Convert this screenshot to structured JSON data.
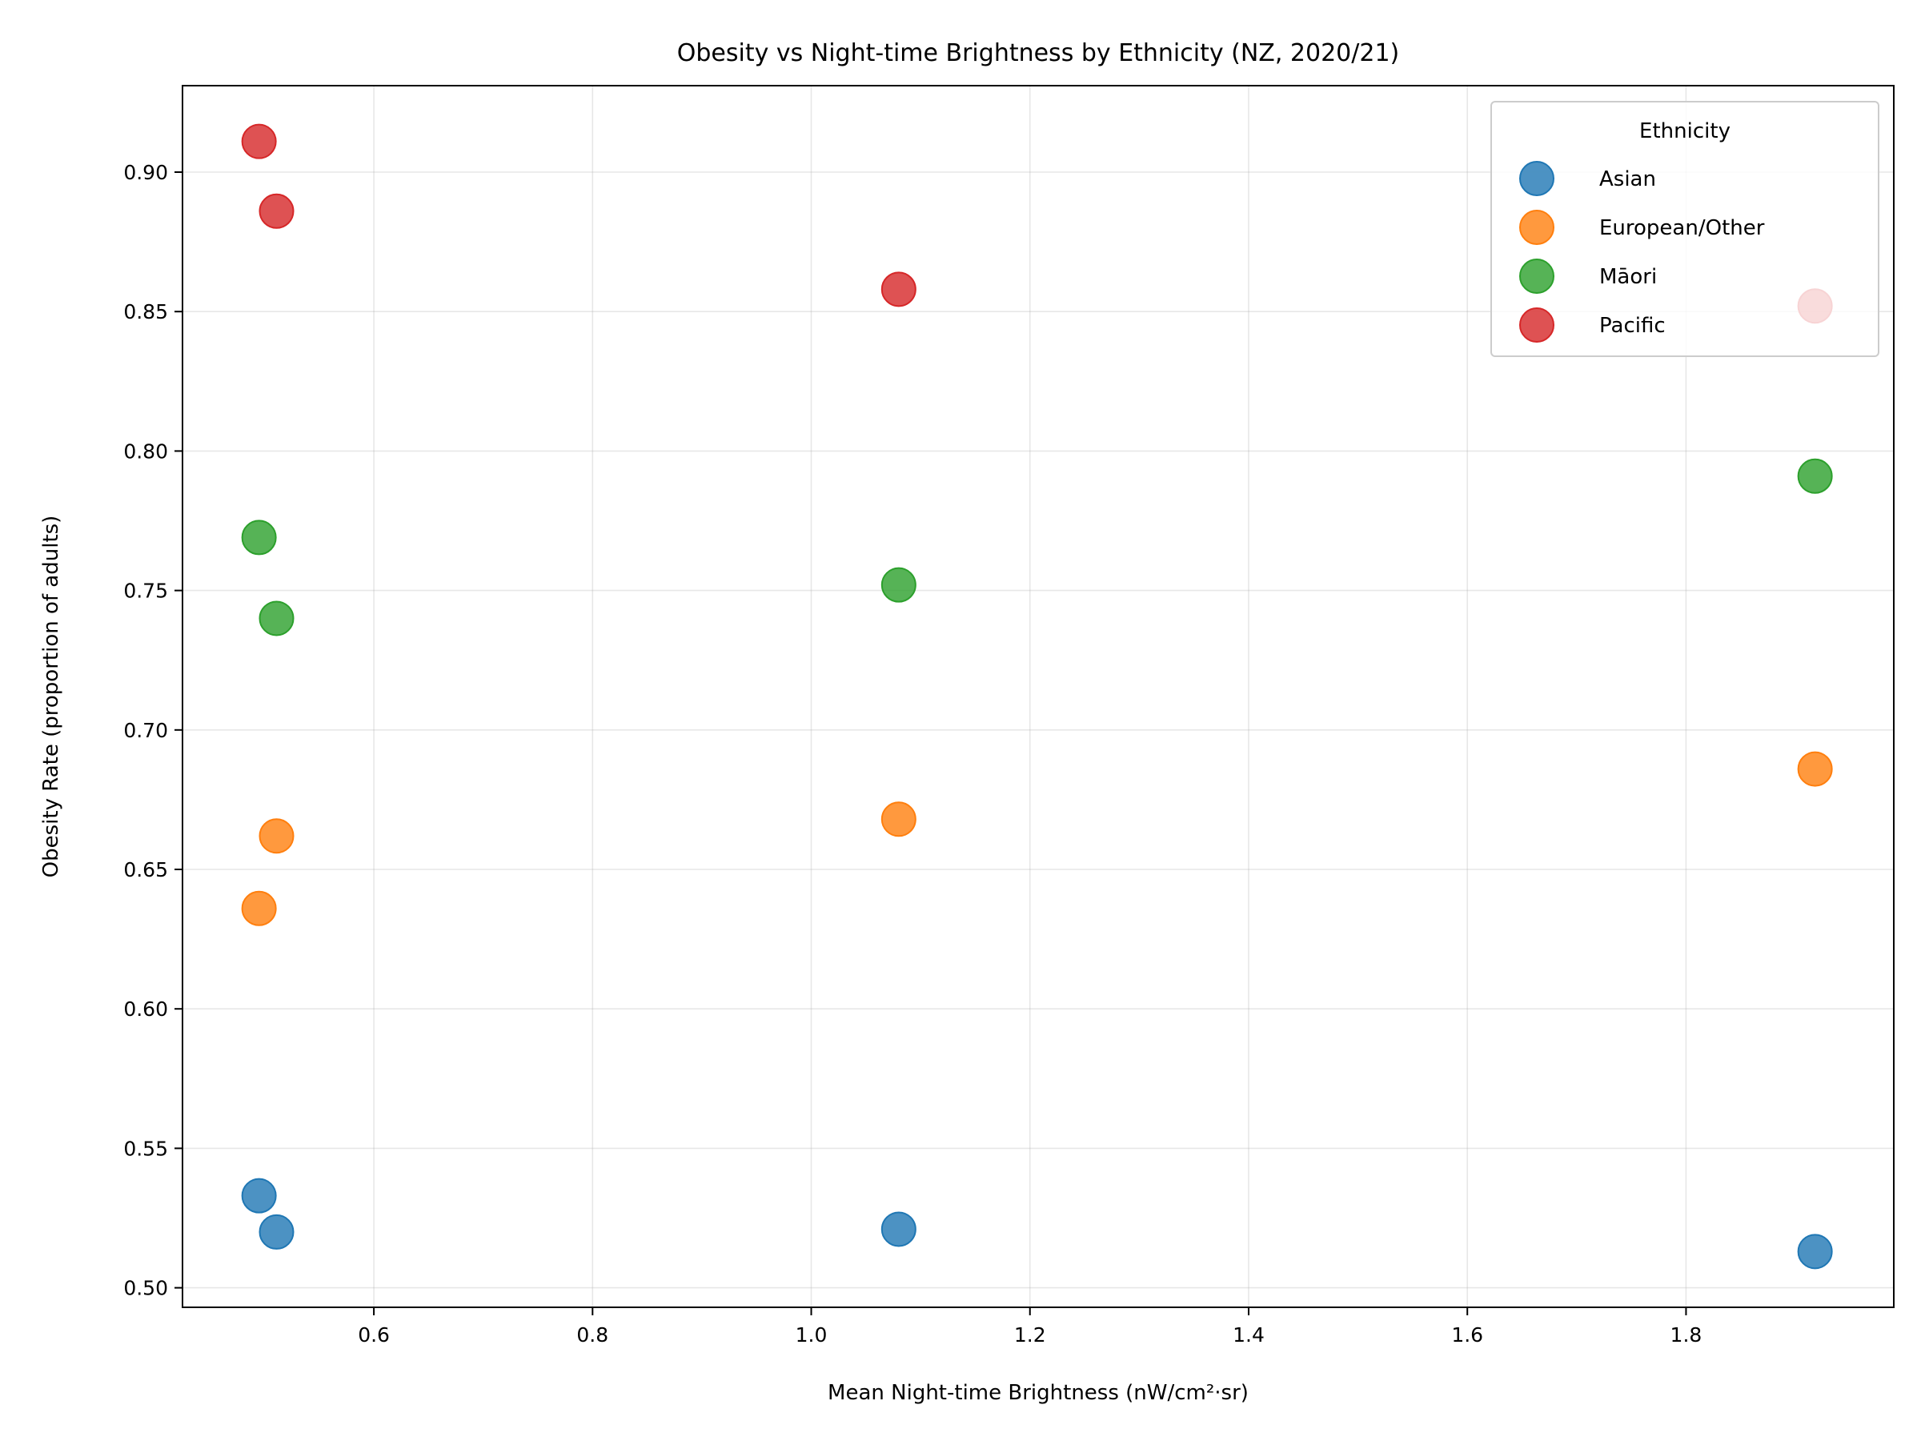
{
  "chart_data": {
    "type": "scatter",
    "title": "Obesity vs Night-time Brightness by Ethnicity (NZ, 2020/21)",
    "xlabel": "Mean Night-time Brightness (nW/cm²·sr)",
    "ylabel": "Obesity Rate (proportion of adults)",
    "xlim": [
      0.425,
      1.99
    ],
    "ylim": [
      0.493,
      0.931
    ],
    "xticks": [
      0.6,
      0.8,
      1.0,
      1.2,
      1.4,
      1.6,
      1.8
    ],
    "xtick_labels": [
      "0.6",
      "0.8",
      "1.0",
      "1.2",
      "1.4",
      "1.6",
      "1.8"
    ],
    "yticks": [
      0.5,
      0.55,
      0.6,
      0.65,
      0.7,
      0.75,
      0.8,
      0.85,
      0.9
    ],
    "ytick_labels": [
      "0.50",
      "0.55",
      "0.60",
      "0.65",
      "0.70",
      "0.75",
      "0.80",
      "0.85",
      "0.90"
    ],
    "grid": true,
    "legend": {
      "title": "Ethnicity",
      "position": "top-right"
    },
    "series": [
      {
        "name": "Asian",
        "color": "#1f77b4",
        "points": [
          [
            0.495,
            0.533
          ],
          [
            0.511,
            0.52
          ],
          [
            1.08,
            0.521
          ],
          [
            1.918,
            0.513
          ]
        ]
      },
      {
        "name": "European/Other",
        "color": "#ff7f0e",
        "points": [
          [
            0.495,
            0.636
          ],
          [
            0.511,
            0.662
          ],
          [
            1.08,
            0.668
          ],
          [
            1.918,
            0.686
          ]
        ]
      },
      {
        "name": "Māori",
        "color": "#2ca02c",
        "points": [
          [
            0.495,
            0.769
          ],
          [
            0.511,
            0.74
          ],
          [
            1.08,
            0.752
          ],
          [
            1.918,
            0.791
          ]
        ]
      },
      {
        "name": "Pacific",
        "color": "#d62728",
        "points": [
          [
            0.495,
            0.911
          ],
          [
            0.511,
            0.886
          ],
          [
            1.08,
            0.858
          ],
          [
            1.918,
            0.852
          ]
        ]
      }
    ]
  }
}
